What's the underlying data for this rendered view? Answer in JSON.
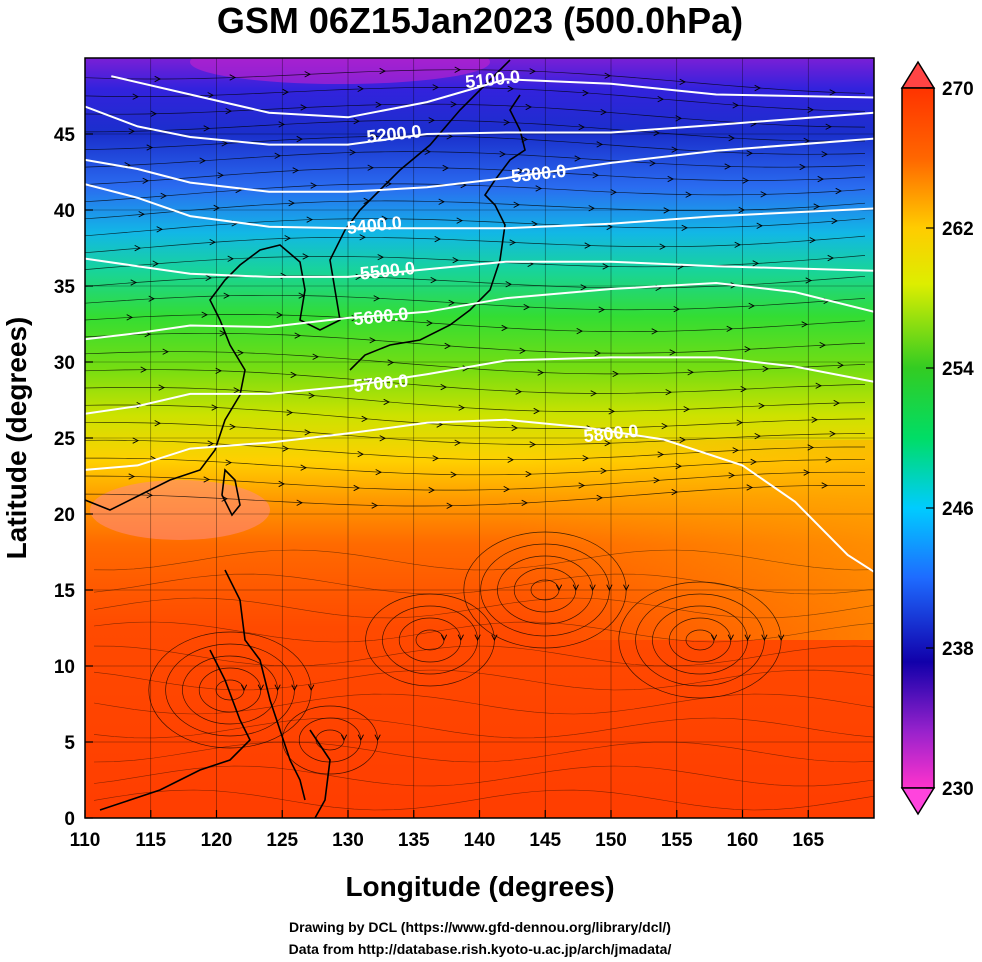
{
  "title": "GSM 06Z15Jan2023 (500.0hPa)",
  "x_axis": {
    "label": "Longitude (degrees)",
    "range": [
      110,
      170
    ],
    "ticks": [
      110,
      115,
      120,
      125,
      130,
      135,
      140,
      145,
      150,
      155,
      160,
      165
    ]
  },
  "y_axis": {
    "label": "Latitude  (degrees)",
    "range": [
      0,
      50
    ],
    "ticks": [
      0,
      5,
      10,
      15,
      20,
      25,
      30,
      35,
      40,
      45
    ]
  },
  "colorbar": {
    "range": [
      230,
      270
    ],
    "ticks": [
      230,
      238,
      246,
      254,
      262,
      270
    ],
    "colors": [
      "#ff33cc",
      "#8800cc",
      "#0000cc",
      "#1e6bff",
      "#00ccff",
      "#00dd77",
      "#22cc22",
      "#99dd00",
      "#ffdd00",
      "#ff8800",
      "#ff3300"
    ]
  },
  "contours": [
    {
      "label": "5100.0",
      "label_at": [
        141,
        48.6
      ],
      "points": [
        [
          112,
          48.8
        ],
        [
          118,
          47.6
        ],
        [
          124,
          46.4
        ],
        [
          130,
          46.1
        ],
        [
          136,
          47.1
        ],
        [
          142,
          48.6
        ],
        [
          150,
          48.3
        ],
        [
          158,
          47.6
        ],
        [
          170,
          47.4
        ]
      ]
    },
    {
      "label": "5200.0",
      "label_at": [
        133.5,
        45.0
      ],
      "points": [
        [
          110,
          46.8
        ],
        [
          114,
          45.5
        ],
        [
          118,
          44.8
        ],
        [
          124,
          44.3
        ],
        [
          130,
          44.3
        ],
        [
          136,
          45.0
        ],
        [
          142,
          45.1
        ],
        [
          150,
          45.1
        ],
        [
          158,
          45.6
        ],
        [
          170,
          46.4
        ]
      ]
    },
    {
      "label": "5300.0",
      "label_at": [
        144.5,
        42.4
      ],
      "points": [
        [
          110,
          43.3
        ],
        [
          114,
          42.7
        ],
        [
          118,
          41.8
        ],
        [
          124,
          41.2
        ],
        [
          130,
          41.2
        ],
        [
          136,
          41.5
        ],
        [
          142,
          42.1
        ],
        [
          150,
          43.1
        ],
        [
          158,
          43.9
        ],
        [
          170,
          44.7
        ]
      ]
    },
    {
      "label": "5400.0",
      "label_at": [
        132,
        39.0
      ],
      "points": [
        [
          110,
          41.7
        ],
        [
          114,
          40.8
        ],
        [
          118,
          39.6
        ],
        [
          124,
          38.9
        ],
        [
          130,
          38.8
        ],
        [
          136,
          38.8
        ],
        [
          142,
          38.8
        ],
        [
          150,
          39.1
        ],
        [
          158,
          39.6
        ],
        [
          170,
          40.1
        ]
      ]
    },
    {
      "label": "5500.0",
      "label_at": [
        133,
        36.0
      ],
      "points": [
        [
          110,
          36.8
        ],
        [
          114,
          36.3
        ],
        [
          118,
          35.8
        ],
        [
          124,
          35.6
        ],
        [
          130,
          35.6
        ],
        [
          136,
          36.1
        ],
        [
          142,
          36.6
        ],
        [
          150,
          36.6
        ],
        [
          158,
          36.3
        ],
        [
          170,
          36.0
        ]
      ]
    },
    {
      "label": "5600.0",
      "label_at": [
        132.5,
        33.0
      ],
      "points": [
        [
          110,
          31.5
        ],
        [
          114,
          31.9
        ],
        [
          118,
          32.4
        ],
        [
          124,
          32.3
        ],
        [
          130,
          32.9
        ],
        [
          136,
          33.3
        ],
        [
          142,
          34.2
        ],
        [
          150,
          34.8
        ],
        [
          158,
          35.2
        ],
        [
          164,
          34.6
        ],
        [
          170,
          33.3
        ]
      ]
    },
    {
      "label": "5700.0",
      "label_at": [
        132.5,
        28.6
      ],
      "points": [
        [
          110,
          26.6
        ],
        [
          114,
          27.1
        ],
        [
          118,
          27.9
        ],
        [
          124,
          27.9
        ],
        [
          130,
          28.4
        ],
        [
          136,
          29.2
        ],
        [
          142,
          30.1
        ],
        [
          150,
          30.3
        ],
        [
          158,
          30.3
        ],
        [
          164,
          29.7
        ],
        [
          170,
          28.7
        ]
      ]
    },
    {
      "label": "5800.0",
      "label_at": [
        150,
        25.3
      ],
      "points": [
        [
          110,
          22.9
        ],
        [
          114,
          23.2
        ],
        [
          118,
          24.3
        ],
        [
          124,
          24.7
        ],
        [
          130,
          25.3
        ],
        [
          136,
          26.0
        ],
        [
          142,
          26.2
        ],
        [
          148,
          25.7
        ],
        [
          154,
          24.9
        ],
        [
          160,
          23.2
        ],
        [
          164,
          20.8
        ],
        [
          168,
          17.3
        ],
        [
          170,
          16.2
        ]
      ]
    }
  ],
  "credits": [
    "Drawing by DCL (https://www.gfd-dennou.org/library/dcl/)",
    "Data from http://database.rish.kyoto-u.ac.jp/arch/jmadata/"
  ]
}
